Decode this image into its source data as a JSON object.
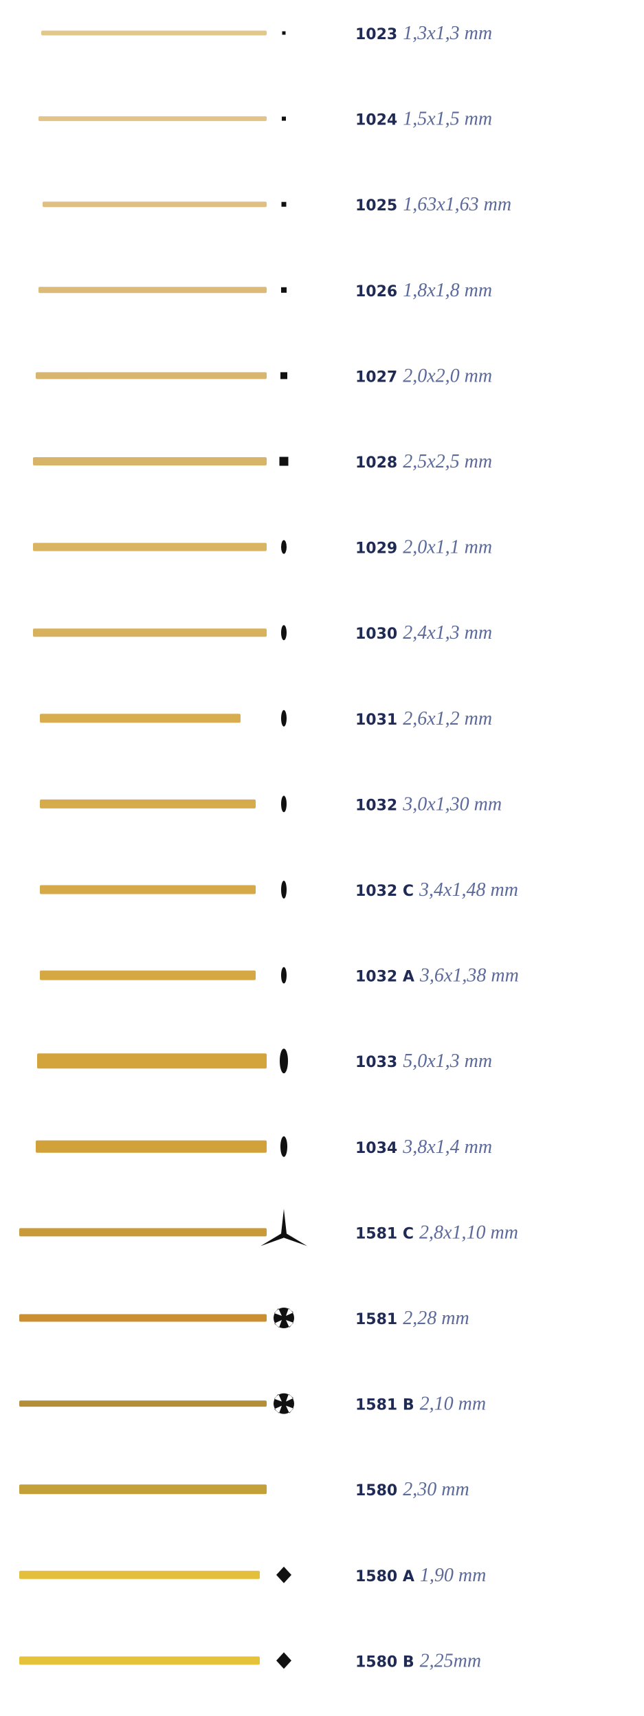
{
  "items": [
    {
      "code": "1023",
      "size": "1,3x1,3 mm"
    },
    {
      "code": "1024",
      "size": "1,5x1,5 mm"
    },
    {
      "code": "1025",
      "size": "1,63x1,63 mm"
    },
    {
      "code": "1026",
      "size": "1,8x1,8 mm"
    },
    {
      "code": "1027",
      "size": "2,0x2,0 mm"
    },
    {
      "code": "1028",
      "size": "2,5x2,5 mm"
    },
    {
      "code": "1029",
      "size": "2,0x1,1 mm"
    },
    {
      "code": "1030",
      "size": "2,4x1,3 mm"
    },
    {
      "code": "1031",
      "size": "2,6x1,2 mm"
    },
    {
      "code": "1032",
      "size": "3,0x1,30 mm"
    },
    {
      "code": "1032 C",
      "size": "3,4x1,48 mm"
    },
    {
      "code": "1032 A",
      "size": "3,6x1,38 mm"
    },
    {
      "code": "1033",
      "size": "5,0x1,3 mm"
    },
    {
      "code": "1034",
      "size": "3,8x1,4 mm"
    },
    {
      "code": "1581 C",
      "size": "2,8x1,10 mm"
    },
    {
      "code": "1581",
      "size": "2,28 mm"
    },
    {
      "code": "1581 B",
      "size": "2,10 mm"
    },
    {
      "code": "1580",
      "size": "2,30 mm"
    },
    {
      "code": "1580 A",
      "size": "1,90 mm"
    },
    {
      "code": "1580 B",
      "size": "2,25mm"
    }
  ]
}
